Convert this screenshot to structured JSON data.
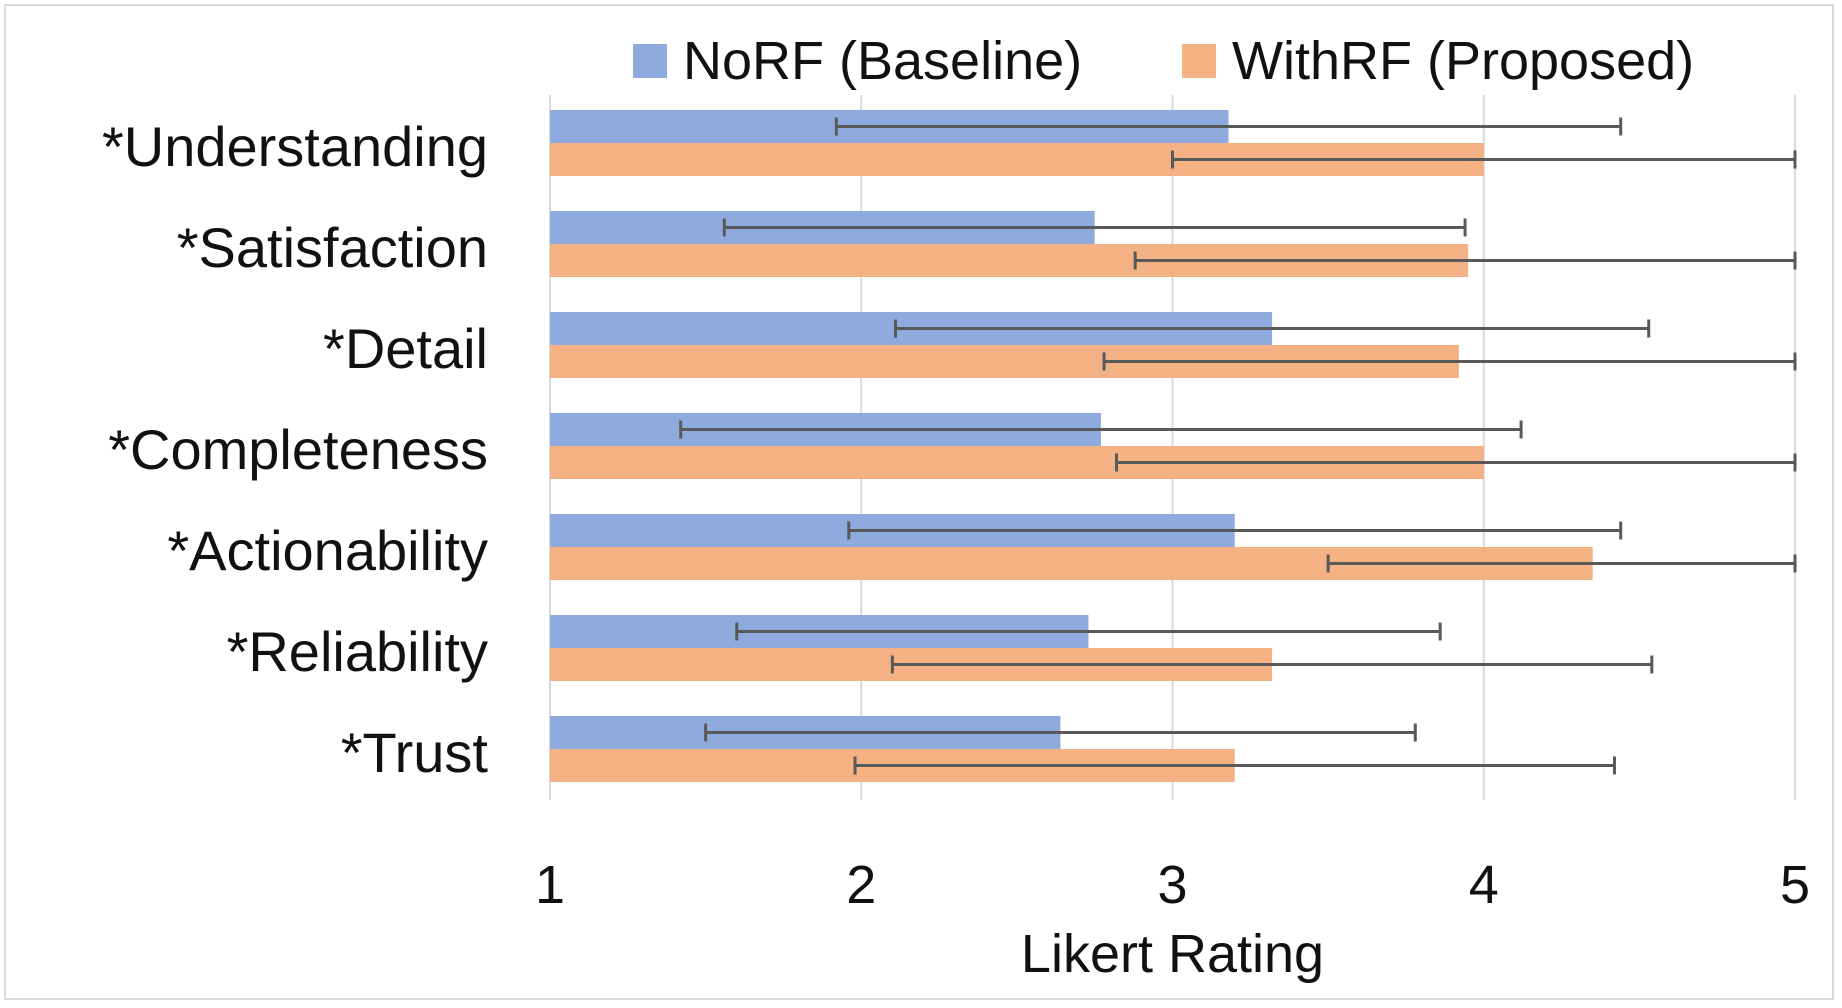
{
  "chart_data": {
    "type": "bar",
    "orientation": "horizontal",
    "title": "",
    "xlabel": "Likert Rating",
    "ylabel": "",
    "xlim": [
      1,
      5
    ],
    "xticks": [
      "1",
      "2",
      "3",
      "4",
      "5"
    ],
    "grid": true,
    "legend_position": "top",
    "categories": [
      "*Understanding",
      "*Satisfaction",
      "*Detail",
      "*Completeness",
      "*Actionability",
      "*Reliability",
      "*Trust"
    ],
    "series": [
      {
        "name": "NoRF (Baseline)",
        "color": "#8faadc",
        "values": [
          3.18,
          2.75,
          3.32,
          2.77,
          3.2,
          2.73,
          2.64
        ],
        "error": [
          1.26,
          1.19,
          1.21,
          1.35,
          1.24,
          1.13,
          1.14
        ]
      },
      {
        "name": "WithRF (Proposed)",
        "color": "#f4b183",
        "values": [
          4.0,
          3.95,
          3.92,
          4.0,
          4.35,
          3.32,
          3.2
        ],
        "error": [
          1.0,
          1.07,
          1.14,
          1.18,
          0.85,
          1.22,
          1.22
        ]
      }
    ],
    "error_bar_color": "#595959"
  }
}
